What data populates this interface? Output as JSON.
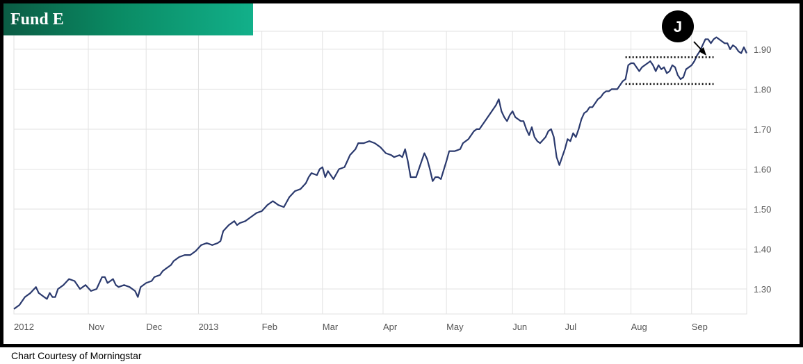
{
  "title": "Fund E",
  "credit": "Chart Courtesy of Morningstar",
  "annotation": {
    "label": "J"
  },
  "colors": {
    "line": "#2b3a6e",
    "grid": "#e2e2e2",
    "title_bg": "#0a8a63"
  },
  "chart_data": {
    "type": "line",
    "title": "Fund E",
    "xlabel": "",
    "ylabel": "",
    "ylim": [
      1.25,
      1.95
    ],
    "yticks": [
      1.3,
      1.4,
      1.5,
      1.6,
      1.7,
      1.8,
      1.9
    ],
    "ytick_labels": [
      "1.30",
      "1.40",
      "1.50",
      "1.60",
      "1.70",
      "1.80",
      "1.90"
    ],
    "xlim": [
      0,
      266
    ],
    "xticks": [
      0,
      27,
      48,
      67,
      90,
      112,
      134,
      157,
      181,
      200,
      224,
      246
    ],
    "xtick_labels": [
      "2012",
      "Nov",
      "Dec",
      "2013",
      "Feb",
      "Mar",
      "Apr",
      "May",
      "Jun",
      "Jul",
      "Aug",
      "Sep"
    ],
    "grid": true,
    "y_axis_side": "right",
    "series": [
      {
        "points": [
          [
            0,
            1.25
          ],
          [
            2,
            1.26
          ],
          [
            4,
            1.28
          ],
          [
            6,
            1.29
          ],
          [
            8,
            1.305
          ],
          [
            9,
            1.29
          ],
          [
            11,
            1.28
          ],
          [
            12,
            1.275
          ],
          [
            13,
            1.29
          ],
          [
            14,
            1.28
          ],
          [
            15,
            1.28
          ],
          [
            16,
            1.3
          ],
          [
            18,
            1.31
          ],
          [
            20,
            1.325
          ],
          [
            22,
            1.32
          ],
          [
            24,
            1.3
          ],
          [
            26,
            1.31
          ],
          [
            28,
            1.295
          ],
          [
            30,
            1.3
          ],
          [
            32,
            1.33
          ],
          [
            33,
            1.33
          ],
          [
            34,
            1.315
          ],
          [
            36,
            1.325
          ],
          [
            37,
            1.31
          ],
          [
            38,
            1.305
          ],
          [
            40,
            1.31
          ],
          [
            42,
            1.305
          ],
          [
            44,
            1.295
          ],
          [
            45,
            1.28
          ],
          [
            46,
            1.305
          ],
          [
            48,
            1.315
          ],
          [
            50,
            1.32
          ],
          [
            51,
            1.33
          ],
          [
            53,
            1.335
          ],
          [
            54,
            1.345
          ],
          [
            55,
            1.35
          ],
          [
            57,
            1.36
          ],
          [
            58,
            1.37
          ],
          [
            60,
            1.38
          ],
          [
            62,
            1.385
          ],
          [
            64,
            1.385
          ],
          [
            66,
            1.395
          ],
          [
            68,
            1.41
          ],
          [
            70,
            1.415
          ],
          [
            72,
            1.41
          ],
          [
            74,
            1.415
          ],
          [
            75,
            1.42
          ],
          [
            76,
            1.445
          ],
          [
            78,
            1.46
          ],
          [
            80,
            1.47
          ],
          [
            81,
            1.46
          ],
          [
            82,
            1.465
          ],
          [
            84,
            1.47
          ],
          [
            86,
            1.48
          ],
          [
            88,
            1.49
          ],
          [
            90,
            1.495
          ],
          [
            92,
            1.51
          ],
          [
            94,
            1.52
          ],
          [
            96,
            1.51
          ],
          [
            98,
            1.505
          ],
          [
            100,
            1.53
          ],
          [
            102,
            1.545
          ],
          [
            104,
            1.55
          ],
          [
            106,
            1.565
          ],
          [
            107,
            1.58
          ],
          [
            108,
            1.59
          ],
          [
            110,
            1.585
          ],
          [
            111,
            1.6
          ],
          [
            112,
            1.605
          ],
          [
            113,
            1.58
          ],
          [
            114,
            1.595
          ],
          [
            116,
            1.575
          ],
          [
            118,
            1.6
          ],
          [
            120,
            1.605
          ],
          [
            121,
            1.62
          ],
          [
            122,
            1.635
          ],
          [
            124,
            1.65
          ],
          [
            125,
            1.665
          ],
          [
            127,
            1.665
          ],
          [
            129,
            1.67
          ],
          [
            131,
            1.665
          ],
          [
            133,
            1.655
          ],
          [
            135,
            1.64
          ],
          [
            137,
            1.635
          ],
          [
            138,
            1.63
          ],
          [
            140,
            1.635
          ],
          [
            141,
            1.63
          ],
          [
            142,
            1.65
          ],
          [
            143,
            1.62
          ],
          [
            144,
            1.58
          ],
          [
            146,
            1.58
          ],
          [
            148,
            1.62
          ],
          [
            149,
            1.64
          ],
          [
            150,
            1.625
          ],
          [
            151,
            1.6
          ],
          [
            152,
            1.57
          ],
          [
            153,
            1.58
          ],
          [
            154,
            1.58
          ],
          [
            155,
            1.575
          ],
          [
            157,
            1.62
          ],
          [
            158,
            1.645
          ],
          [
            160,
            1.645
          ],
          [
            162,
            1.65
          ],
          [
            163,
            1.665
          ],
          [
            165,
            1.675
          ],
          [
            167,
            1.695
          ],
          [
            168,
            1.7
          ],
          [
            169,
            1.7
          ],
          [
            171,
            1.72
          ],
          [
            173,
            1.74
          ],
          [
            175,
            1.76
          ],
          [
            176,
            1.775
          ],
          [
            177,
            1.745
          ],
          [
            178,
            1.73
          ],
          [
            179,
            1.72
          ],
          [
            180,
            1.735
          ],
          [
            181,
            1.745
          ],
          [
            182,
            1.73
          ],
          [
            184,
            1.72
          ],
          [
            185,
            1.72
          ],
          [
            186,
            1.7
          ],
          [
            187,
            1.685
          ],
          [
            188,
            1.705
          ],
          [
            189,
            1.68
          ],
          [
            190,
            1.67
          ],
          [
            191,
            1.665
          ],
          [
            193,
            1.68
          ],
          [
            194,
            1.695
          ],
          [
            195,
            1.7
          ],
          [
            196,
            1.68
          ],
          [
            197,
            1.63
          ],
          [
            198,
            1.61
          ],
          [
            199,
            1.63
          ],
          [
            200,
            1.65
          ],
          [
            201,
            1.675
          ],
          [
            202,
            1.67
          ],
          [
            203,
            1.69
          ],
          [
            204,
            1.68
          ],
          [
            205,
            1.7
          ],
          [
            206,
            1.725
          ],
          [
            207,
            1.74
          ],
          [
            208,
            1.745
          ],
          [
            209,
            1.755
          ],
          [
            210,
            1.755
          ],
          [
            211,
            1.765
          ],
          [
            212,
            1.775
          ],
          [
            213,
            1.78
          ],
          [
            214,
            1.79
          ],
          [
            215,
            1.795
          ],
          [
            216,
            1.795
          ],
          [
            217,
            1.8
          ],
          [
            218,
            1.8
          ],
          [
            219,
            1.8
          ],
          [
            220,
            1.81
          ],
          [
            221,
            1.82
          ],
          [
            222,
            1.825
          ],
          [
            223,
            1.86
          ],
          [
            224,
            1.865
          ],
          [
            225,
            1.865
          ],
          [
            226,
            1.855
          ],
          [
            227,
            1.845
          ],
          [
            228,
            1.855
          ],
          [
            229,
            1.86
          ],
          [
            230,
            1.865
          ],
          [
            231,
            1.87
          ],
          [
            232,
            1.86
          ],
          [
            233,
            1.845
          ],
          [
            234,
            1.86
          ],
          [
            235,
            1.85
          ],
          [
            236,
            1.855
          ],
          [
            237,
            1.84
          ],
          [
            238,
            1.845
          ],
          [
            239,
            1.86
          ],
          [
            240,
            1.855
          ],
          [
            241,
            1.835
          ],
          [
            242,
            1.825
          ],
          [
            243,
            1.83
          ],
          [
            244,
            1.85
          ],
          [
            245,
            1.855
          ],
          [
            246,
            1.86
          ],
          [
            247,
            1.87
          ],
          [
            248,
            1.885
          ],
          [
            249,
            1.895
          ],
          [
            250,
            1.91
          ],
          [
            251,
            1.925
          ],
          [
            252,
            1.925
          ],
          [
            253,
            1.915
          ],
          [
            254,
            1.925
          ],
          [
            255,
            1.93
          ],
          [
            256,
            1.925
          ],
          [
            257,
            1.92
          ],
          [
            258,
            1.915
          ],
          [
            259,
            1.915
          ],
          [
            260,
            1.9
          ],
          [
            261,
            1.91
          ],
          [
            262,
            1.905
          ],
          [
            263,
            1.895
          ],
          [
            264,
            1.89
          ],
          [
            265,
            1.905
          ],
          [
            266,
            1.89
          ]
        ]
      }
    ],
    "reference_lines": [
      {
        "y": 1.88,
        "x_range": [
          222,
          254
        ],
        "style": "dotted"
      },
      {
        "y": 1.813,
        "x_range": [
          222,
          254
        ],
        "style": "dotted"
      }
    ]
  }
}
